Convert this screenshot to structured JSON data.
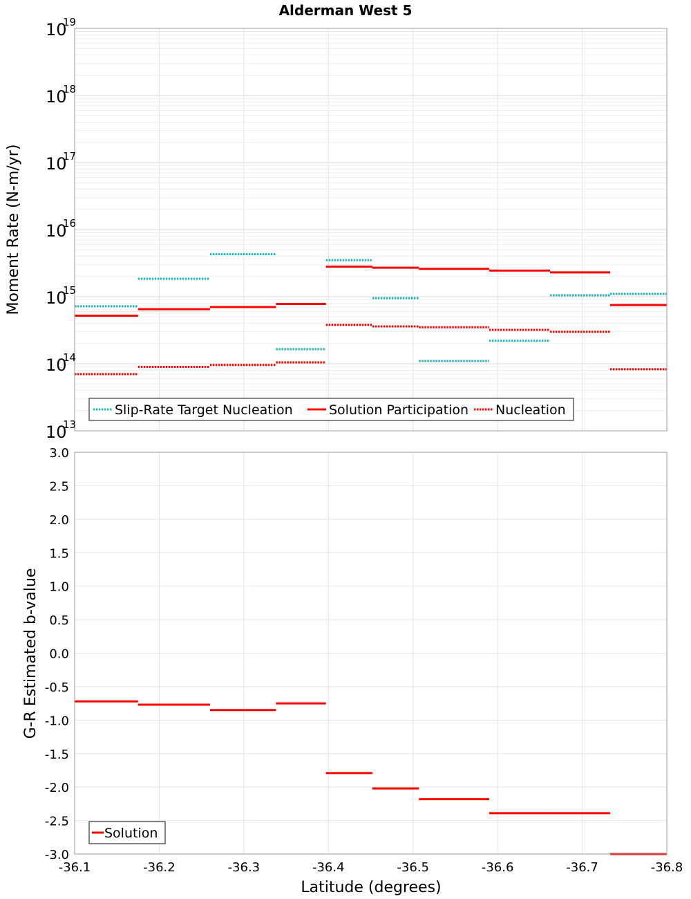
{
  "title": "Alderman West 5",
  "chart_data": [
    {
      "type": "line",
      "ylabel": "Moment Rate (N-m/yr)",
      "yscale": "log",
      "ylim": [
        10000000000000.0,
        1e+19
      ],
      "xlim": [
        -36.1,
        -36.8
      ],
      "ytick_labels": [
        {
          "base": "10",
          "exp": "13"
        },
        {
          "base": "10",
          "exp": "14"
        },
        {
          "base": "10",
          "exp": "15"
        },
        {
          "base": "10",
          "exp": "16"
        },
        {
          "base": "10",
          "exp": "17"
        },
        {
          "base": "10",
          "exp": "18"
        },
        {
          "base": "10",
          "exp": "19"
        }
      ],
      "grid": true,
      "legend_position": "bottom-left",
      "series": [
        {
          "name": "Slip-Rate Target Nucleation",
          "color": "#1fb5b5",
          "style": "dotted",
          "segments": [
            {
              "x0": -36.1,
              "x1": -36.175,
              "y": 720000000000000.0
            },
            {
              "x0": -36.175,
              "x1": -36.26,
              "y": 1850000000000000.0
            },
            {
              "x0": -36.26,
              "x1": -36.338,
              "y": 4300000000000000.0
            },
            {
              "x0": -36.338,
              "x1": -36.397,
              "y": 165000000000000.0
            },
            {
              "x0": -36.397,
              "x1": -36.452,
              "y": 3500000000000000.0
            },
            {
              "x0": -36.452,
              "x1": -36.507,
              "y": 950000000000000.0
            },
            {
              "x0": -36.507,
              "x1": -36.59,
              "y": 110000000000000.0
            },
            {
              "x0": -36.59,
              "x1": -36.662,
              "y": 220000000000000.0
            },
            {
              "x0": -36.662,
              "x1": -36.733,
              "y": 1050000000000000.0
            },
            {
              "x0": -36.733,
              "x1": -36.8,
              "y": 1100000000000000.0
            }
          ]
        },
        {
          "name": "Solution Participation",
          "color": "#ff0000",
          "style": "solid",
          "segments": [
            {
              "x0": -36.1,
              "x1": -36.175,
              "y": 520000000000000.0
            },
            {
              "x0": -36.175,
              "x1": -36.26,
              "y": 650000000000000.0
            },
            {
              "x0": -36.26,
              "x1": -36.338,
              "y": 700000000000000.0
            },
            {
              "x0": -36.338,
              "x1": -36.397,
              "y": 780000000000000.0
            },
            {
              "x0": -36.397,
              "x1": -36.452,
              "y": 2800000000000000.0
            },
            {
              "x0": -36.452,
              "x1": -36.507,
              "y": 2700000000000000.0
            },
            {
              "x0": -36.507,
              "x1": -36.59,
              "y": 2600000000000000.0
            },
            {
              "x0": -36.59,
              "x1": -36.662,
              "y": 2450000000000000.0
            },
            {
              "x0": -36.662,
              "x1": -36.733,
              "y": 2300000000000000.0
            },
            {
              "x0": -36.733,
              "x1": -36.8,
              "y": 750000000000000.0
            }
          ]
        },
        {
          "name": "Nucleation",
          "color": "#ff0000",
          "style": "dotted",
          "segments": [
            {
              "x0": -36.1,
              "x1": -36.175,
              "y": 70000000000000.0
            },
            {
              "x0": -36.175,
              "x1": -36.26,
              "y": 90000000000000.0
            },
            {
              "x0": -36.26,
              "x1": -36.338,
              "y": 96000000000000.0
            },
            {
              "x0": -36.338,
              "x1": -36.397,
              "y": 105000000000000.0
            },
            {
              "x0": -36.397,
              "x1": -36.452,
              "y": 380000000000000.0
            },
            {
              "x0": -36.452,
              "x1": -36.507,
              "y": 360000000000000.0
            },
            {
              "x0": -36.507,
              "x1": -36.59,
              "y": 350000000000000.0
            },
            {
              "x0": -36.59,
              "x1": -36.662,
              "y": 320000000000000.0
            },
            {
              "x0": -36.662,
              "x1": -36.733,
              "y": 300000000000000.0
            },
            {
              "x0": -36.733,
              "x1": -36.8,
              "y": 83000000000000.0
            }
          ]
        }
      ]
    },
    {
      "type": "line",
      "xlabel": "Latitude (degrees)",
      "ylabel": "G-R Estimated b-value",
      "ylim": [
        -3.0,
        3.0
      ],
      "xlim": [
        -36.1,
        -36.8
      ],
      "yticks": [
        "3.0",
        "2.5",
        "2.0",
        "1.5",
        "1.0",
        "0.5",
        "0.0",
        "-0.5",
        "-1.0",
        "-1.5",
        "-2.0",
        "-2.5",
        "-3.0"
      ],
      "xticks": [
        "-36.1",
        "-36.2",
        "-36.3",
        "-36.4",
        "-36.5",
        "-36.6",
        "-36.7",
        "-36.8"
      ],
      "grid": true,
      "legend_position": "bottom-left",
      "series": [
        {
          "name": "Solution",
          "color": "#ff0000",
          "style": "solid",
          "segments": [
            {
              "x0": -36.1,
              "x1": -36.175,
              "y": -0.72
            },
            {
              "x0": -36.175,
              "x1": -36.26,
              "y": -0.77
            },
            {
              "x0": -36.26,
              "x1": -36.338,
              "y": -0.85
            },
            {
              "x0": -36.338,
              "x1": -36.397,
              "y": -0.75
            },
            {
              "x0": -36.397,
              "x1": -36.452,
              "y": -1.79
            },
            {
              "x0": -36.452,
              "x1": -36.507,
              "y": -2.02
            },
            {
              "x0": -36.507,
              "x1": -36.59,
              "y": -2.18
            },
            {
              "x0": -36.59,
              "x1": -36.662,
              "y": -2.39
            },
            {
              "x0": -36.662,
              "x1": -36.733,
              "y": -2.39
            },
            {
              "x0": -36.733,
              "x1": -36.8,
              "y": -3.0
            }
          ]
        }
      ]
    }
  ]
}
